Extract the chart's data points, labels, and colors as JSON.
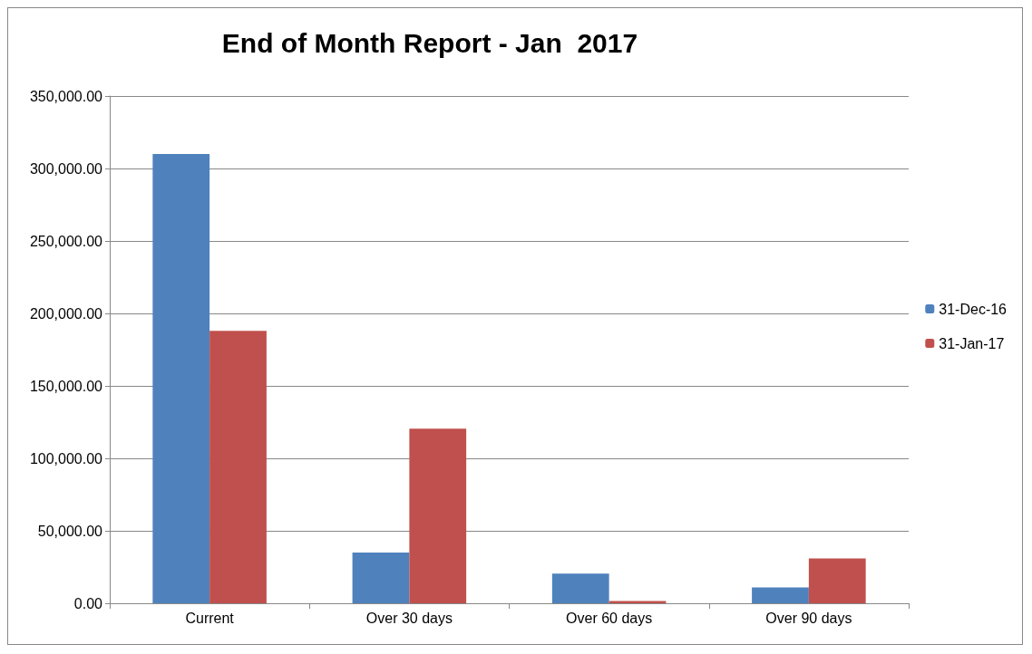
{
  "chart_data": {
    "type": "bar",
    "title": "End of Month Report - Jan  2017",
    "categories": [
      "Current",
      "Over 30 days",
      "Over 60 days",
      "Over 90 days"
    ],
    "series": [
      {
        "name": "31-Dec-16",
        "color": "#4f81bd",
        "values": [
          310000,
          35000,
          20500,
          11000
        ]
      },
      {
        "name": "31-Jan-17",
        "color": "#c0504d",
        "values": [
          188000,
          120500,
          1500,
          31000
        ]
      }
    ],
    "ylim": [
      0,
      350000
    ],
    "yticks": [
      {
        "value": 0,
        "label": "0.00"
      },
      {
        "value": 50000,
        "label": "50,000.00"
      },
      {
        "value": 100000,
        "label": "100,000.00"
      },
      {
        "value": 150000,
        "label": "150,000.00"
      },
      {
        "value": 200000,
        "label": "200,000.00"
      },
      {
        "value": 250000,
        "label": "250,000.00"
      },
      {
        "value": 300000,
        "label": "300,000.00"
      },
      {
        "value": 350000,
        "label": "350,000.00"
      }
    ],
    "grid": "y",
    "legend": "right"
  }
}
